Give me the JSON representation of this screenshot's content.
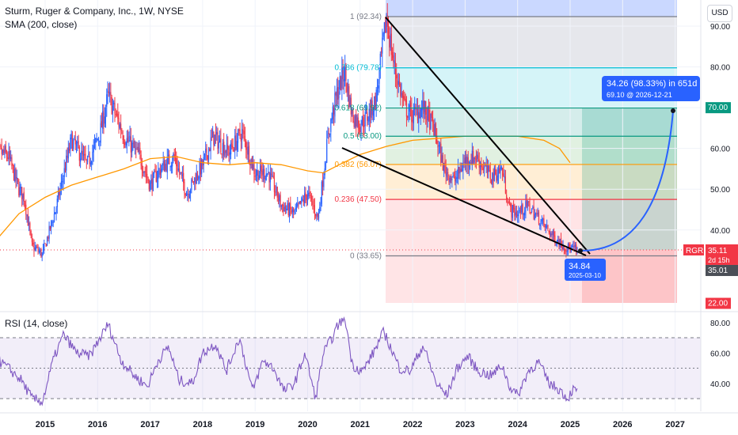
{
  "header": {
    "title": "Sturm, Ruger & Company, Inc., 1W, NYSE",
    "sma_label": "SMA (200, close)",
    "rsi_label": "RSI (14, close)",
    "currency_button": "USD"
  },
  "colors": {
    "up": "#2962ff",
    "down": "#f23645",
    "sma": "#ff9800",
    "rsi": "#7e57c2",
    "trendline": "#000000",
    "projection": "#2962ff"
  },
  "chart_data": [
    {
      "type": "candlestick",
      "title": "Sturm, Ruger & Company, Inc., 1W, NYSE",
      "x_ticks": [
        "2015",
        "2016",
        "2017",
        "2018",
        "2019",
        "2020",
        "2021",
        "2022",
        "2023",
        "2024",
        "2025",
        "2026",
        "2027"
      ],
      "y_ticks": [
        "40.00",
        "50.00",
        "60.00",
        "70.00",
        "80.00",
        "90.00"
      ],
      "ylim": [
        22,
        92.34
      ],
      "price_path": [
        [
          2014.0,
          60
        ],
        [
          2014.3,
          58
        ],
        [
          2014.5,
          50
        ],
        [
          2014.6,
          48
        ],
        [
          2014.75,
          36
        ],
        [
          2014.95,
          34
        ],
        [
          2015.2,
          45
        ],
        [
          2015.5,
          62
        ],
        [
          2015.8,
          56
        ],
        [
          2016.05,
          64
        ],
        [
          2016.2,
          73
        ],
        [
          2016.5,
          63
        ],
        [
          2016.8,
          58
        ],
        [
          2017.0,
          51
        ],
        [
          2017.2,
          55
        ],
        [
          2017.45,
          58
        ],
        [
          2017.7,
          49
        ],
        [
          2018.0,
          56
        ],
        [
          2018.2,
          63
        ],
        [
          2018.5,
          59
        ],
        [
          2018.75,
          64
        ],
        [
          2019.0,
          54
        ],
        [
          2019.25,
          54
        ],
        [
          2019.5,
          46
        ],
        [
          2019.75,
          44
        ],
        [
          2020.0,
          49
        ],
        [
          2020.2,
          43
        ],
        [
          2020.4,
          64
        ],
        [
          2020.55,
          73
        ],
        [
          2020.7,
          79
        ],
        [
          2020.85,
          68
        ],
        [
          2021.0,
          66
        ],
        [
          2021.15,
          68
        ],
        [
          2021.3,
          72
        ],
        [
          2021.5,
          92
        ],
        [
          2021.65,
          80
        ],
        [
          2021.85,
          70
        ],
        [
          2022.0,
          68
        ],
        [
          2022.2,
          70
        ],
        [
          2022.4,
          65
        ],
        [
          2022.6,
          55
        ],
        [
          2022.8,
          52
        ],
        [
          2023.0,
          57
        ],
        [
          2023.2,
          58
        ],
        [
          2023.5,
          53
        ],
        [
          2023.7,
          55
        ],
        [
          2023.85,
          45
        ],
        [
          2024.0,
          44
        ],
        [
          2024.2,
          46
        ],
        [
          2024.45,
          42
        ],
        [
          2024.7,
          38
        ],
        [
          2024.95,
          35.5
        ],
        [
          2025.15,
          35.11
        ]
      ],
      "sma200": [
        [
          2014.0,
          36.5
        ],
        [
          2014.5,
          44
        ],
        [
          2015.0,
          48
        ],
        [
          2015.5,
          51
        ],
        [
          2016.0,
          53
        ],
        [
          2016.5,
          55
        ],
        [
          2017.0,
          57.5
        ],
        [
          2017.5,
          58
        ],
        [
          2018.0,
          56.5
        ],
        [
          2018.5,
          56
        ],
        [
          2019.0,
          56.5
        ],
        [
          2019.5,
          56
        ],
        [
          2020.0,
          54.5
        ],
        [
          2020.3,
          54
        ],
        [
          2020.6,
          56
        ],
        [
          2021.0,
          58.5
        ],
        [
          2021.5,
          60.5
        ],
        [
          2022.0,
          62
        ],
        [
          2022.5,
          62.5
        ],
        [
          2023.0,
          63
        ],
        [
          2023.5,
          63
        ],
        [
          2024.0,
          63
        ],
        [
          2024.5,
          62
        ],
        [
          2024.8,
          60
        ],
        [
          2025.0,
          56.5
        ]
      ],
      "last_price": {
        "symbol": "RGR",
        "value": "35.11",
        "countdown": "2d 15h",
        "secondary": "35.01"
      },
      "target_label": "70.00",
      "stop_label": "22.00",
      "fibonacci": {
        "levels": [
          {
            "ratio": 1,
            "price": 92.34,
            "label": "1 (92.34)",
            "color": "#787b86"
          },
          {
            "ratio": 0.786,
            "price": 79.78,
            "label": "0.786 (79.78)",
            "color": "#00bcd4"
          },
          {
            "ratio": 0.618,
            "price": 69.92,
            "label": "0.618 (69.92)",
            "color": "#089981"
          },
          {
            "ratio": 0.5,
            "price": 63.0,
            "label": "0.5 (63.00)",
            "color": "#089981"
          },
          {
            "ratio": 0.382,
            "price": 56.07,
            "label": "0.382 (56.07)",
            "color": "#ff9800"
          },
          {
            "ratio": 0.236,
            "price": 47.5,
            "label": "0.236 (47.50)",
            "color": "#f23645"
          },
          {
            "ratio": 0,
            "price": 33.65,
            "label": "0 (33.65)",
            "color": "#787b86"
          }
        ]
      },
      "annotations": {
        "low_callout": {
          "value": "34.84",
          "date": "2025-03-10"
        },
        "projection": {
          "headline": "34.26 (98.33%) in 651d",
          "detail": "69.10 @ 2026-12-21"
        }
      }
    },
    {
      "type": "line",
      "title": "RSI (14, close)",
      "y_ticks": [
        "40.00",
        "60.00",
        "80.00"
      ],
      "ylim": [
        24,
        84
      ],
      "bands": {
        "upper": 70,
        "middle": 50,
        "lower": 30
      },
      "series": [
        {
          "values": [
            [
              2014.0,
              58
            ],
            [
              2014.3,
              50
            ],
            [
              2014.55,
              42
            ],
            [
              2014.75,
              30
            ],
            [
              2014.95,
              28
            ],
            [
              2015.15,
              55
            ],
            [
              2015.35,
              72
            ],
            [
              2015.6,
              60
            ],
            [
              2015.85,
              58
            ],
            [
              2016.05,
              70
            ],
            [
              2016.2,
              79
            ],
            [
              2016.45,
              55
            ],
            [
              2016.7,
              45
            ],
            [
              2016.95,
              38
            ],
            [
              2017.15,
              55
            ],
            [
              2017.35,
              64
            ],
            [
              2017.55,
              42
            ],
            [
              2017.8,
              40
            ],
            [
              2018.0,
              60
            ],
            [
              2018.25,
              66
            ],
            [
              2018.45,
              48
            ],
            [
              2018.7,
              70
            ],
            [
              2018.95,
              35
            ],
            [
              2019.15,
              55
            ],
            [
              2019.35,
              50
            ],
            [
              2019.55,
              35
            ],
            [
              2019.75,
              40
            ],
            [
              2019.95,
              60
            ],
            [
              2020.15,
              30
            ],
            [
              2020.3,
              60
            ],
            [
              2020.5,
              72
            ],
            [
              2020.6,
              80
            ],
            [
              2020.72,
              82
            ],
            [
              2020.85,
              52
            ],
            [
              2021.05,
              48
            ],
            [
              2021.25,
              60
            ],
            [
              2021.45,
              74
            ],
            [
              2021.55,
              66
            ],
            [
              2021.75,
              50
            ],
            [
              2021.95,
              48
            ],
            [
              2022.2,
              65
            ],
            [
              2022.45,
              40
            ],
            [
              2022.65,
              32
            ],
            [
              2022.85,
              50
            ],
            [
              2023.05,
              58
            ],
            [
              2023.25,
              48
            ],
            [
              2023.5,
              45
            ],
            [
              2023.7,
              52
            ],
            [
              2023.85,
              38
            ],
            [
              2024.0,
              32
            ],
            [
              2024.2,
              48
            ],
            [
              2024.4,
              54
            ],
            [
              2024.6,
              40
            ],
            [
              2024.8,
              36
            ],
            [
              2024.95,
              30
            ],
            [
              2025.05,
              36
            ],
            [
              2025.15,
              34
            ]
          ]
        }
      ]
    }
  ]
}
